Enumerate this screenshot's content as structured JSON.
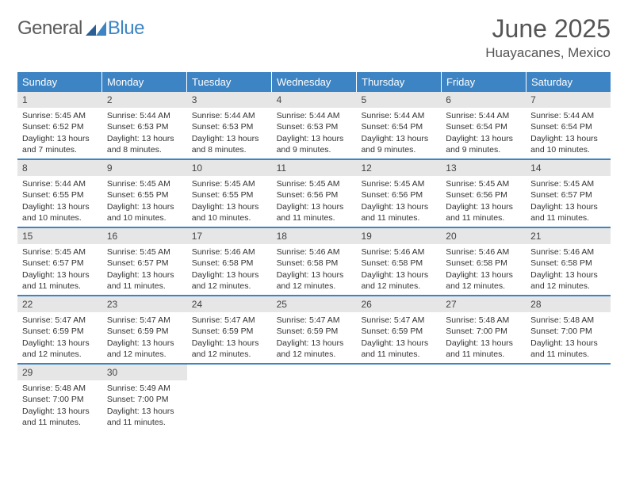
{
  "logo": {
    "general": "General",
    "blue": "Blue"
  },
  "title": "June 2025",
  "location": "Huayacanes, Mexico",
  "colors": {
    "header_bg": "#3d84c4",
    "header_fg": "#ffffff",
    "daynum_bg": "#e6e6e6",
    "week_border": "#3d84c4",
    "text": "#333333"
  },
  "weekdays": [
    "Sunday",
    "Monday",
    "Tuesday",
    "Wednesday",
    "Thursday",
    "Friday",
    "Saturday"
  ],
  "weeks": [
    [
      {
        "n": "1",
        "sr": "Sunrise: 5:45 AM",
        "ss": "Sunset: 6:52 PM",
        "d1": "Daylight: 13 hours",
        "d2": "and 7 minutes."
      },
      {
        "n": "2",
        "sr": "Sunrise: 5:44 AM",
        "ss": "Sunset: 6:53 PM",
        "d1": "Daylight: 13 hours",
        "d2": "and 8 minutes."
      },
      {
        "n": "3",
        "sr": "Sunrise: 5:44 AM",
        "ss": "Sunset: 6:53 PM",
        "d1": "Daylight: 13 hours",
        "d2": "and 8 minutes."
      },
      {
        "n": "4",
        "sr": "Sunrise: 5:44 AM",
        "ss": "Sunset: 6:53 PM",
        "d1": "Daylight: 13 hours",
        "d2": "and 9 minutes."
      },
      {
        "n": "5",
        "sr": "Sunrise: 5:44 AM",
        "ss": "Sunset: 6:54 PM",
        "d1": "Daylight: 13 hours",
        "d2": "and 9 minutes."
      },
      {
        "n": "6",
        "sr": "Sunrise: 5:44 AM",
        "ss": "Sunset: 6:54 PM",
        "d1": "Daylight: 13 hours",
        "d2": "and 9 minutes."
      },
      {
        "n": "7",
        "sr": "Sunrise: 5:44 AM",
        "ss": "Sunset: 6:54 PM",
        "d1": "Daylight: 13 hours",
        "d2": "and 10 minutes."
      }
    ],
    [
      {
        "n": "8",
        "sr": "Sunrise: 5:44 AM",
        "ss": "Sunset: 6:55 PM",
        "d1": "Daylight: 13 hours",
        "d2": "and 10 minutes."
      },
      {
        "n": "9",
        "sr": "Sunrise: 5:45 AM",
        "ss": "Sunset: 6:55 PM",
        "d1": "Daylight: 13 hours",
        "d2": "and 10 minutes."
      },
      {
        "n": "10",
        "sr": "Sunrise: 5:45 AM",
        "ss": "Sunset: 6:55 PM",
        "d1": "Daylight: 13 hours",
        "d2": "and 10 minutes."
      },
      {
        "n": "11",
        "sr": "Sunrise: 5:45 AM",
        "ss": "Sunset: 6:56 PM",
        "d1": "Daylight: 13 hours",
        "d2": "and 11 minutes."
      },
      {
        "n": "12",
        "sr": "Sunrise: 5:45 AM",
        "ss": "Sunset: 6:56 PM",
        "d1": "Daylight: 13 hours",
        "d2": "and 11 minutes."
      },
      {
        "n": "13",
        "sr": "Sunrise: 5:45 AM",
        "ss": "Sunset: 6:56 PM",
        "d1": "Daylight: 13 hours",
        "d2": "and 11 minutes."
      },
      {
        "n": "14",
        "sr": "Sunrise: 5:45 AM",
        "ss": "Sunset: 6:57 PM",
        "d1": "Daylight: 13 hours",
        "d2": "and 11 minutes."
      }
    ],
    [
      {
        "n": "15",
        "sr": "Sunrise: 5:45 AM",
        "ss": "Sunset: 6:57 PM",
        "d1": "Daylight: 13 hours",
        "d2": "and 11 minutes."
      },
      {
        "n": "16",
        "sr": "Sunrise: 5:45 AM",
        "ss": "Sunset: 6:57 PM",
        "d1": "Daylight: 13 hours",
        "d2": "and 11 minutes."
      },
      {
        "n": "17",
        "sr": "Sunrise: 5:46 AM",
        "ss": "Sunset: 6:58 PM",
        "d1": "Daylight: 13 hours",
        "d2": "and 12 minutes."
      },
      {
        "n": "18",
        "sr": "Sunrise: 5:46 AM",
        "ss": "Sunset: 6:58 PM",
        "d1": "Daylight: 13 hours",
        "d2": "and 12 minutes."
      },
      {
        "n": "19",
        "sr": "Sunrise: 5:46 AM",
        "ss": "Sunset: 6:58 PM",
        "d1": "Daylight: 13 hours",
        "d2": "and 12 minutes."
      },
      {
        "n": "20",
        "sr": "Sunrise: 5:46 AM",
        "ss": "Sunset: 6:58 PM",
        "d1": "Daylight: 13 hours",
        "d2": "and 12 minutes."
      },
      {
        "n": "21",
        "sr": "Sunrise: 5:46 AM",
        "ss": "Sunset: 6:58 PM",
        "d1": "Daylight: 13 hours",
        "d2": "and 12 minutes."
      }
    ],
    [
      {
        "n": "22",
        "sr": "Sunrise: 5:47 AM",
        "ss": "Sunset: 6:59 PM",
        "d1": "Daylight: 13 hours",
        "d2": "and 12 minutes."
      },
      {
        "n": "23",
        "sr": "Sunrise: 5:47 AM",
        "ss": "Sunset: 6:59 PM",
        "d1": "Daylight: 13 hours",
        "d2": "and 12 minutes."
      },
      {
        "n": "24",
        "sr": "Sunrise: 5:47 AM",
        "ss": "Sunset: 6:59 PM",
        "d1": "Daylight: 13 hours",
        "d2": "and 12 minutes."
      },
      {
        "n": "25",
        "sr": "Sunrise: 5:47 AM",
        "ss": "Sunset: 6:59 PM",
        "d1": "Daylight: 13 hours",
        "d2": "and 12 minutes."
      },
      {
        "n": "26",
        "sr": "Sunrise: 5:47 AM",
        "ss": "Sunset: 6:59 PM",
        "d1": "Daylight: 13 hours",
        "d2": "and 11 minutes."
      },
      {
        "n": "27",
        "sr": "Sunrise: 5:48 AM",
        "ss": "Sunset: 7:00 PM",
        "d1": "Daylight: 13 hours",
        "d2": "and 11 minutes."
      },
      {
        "n": "28",
        "sr": "Sunrise: 5:48 AM",
        "ss": "Sunset: 7:00 PM",
        "d1": "Daylight: 13 hours",
        "d2": "and 11 minutes."
      }
    ],
    [
      {
        "n": "29",
        "sr": "Sunrise: 5:48 AM",
        "ss": "Sunset: 7:00 PM",
        "d1": "Daylight: 13 hours",
        "d2": "and 11 minutes."
      },
      {
        "n": "30",
        "sr": "Sunrise: 5:49 AM",
        "ss": "Sunset: 7:00 PM",
        "d1": "Daylight: 13 hours",
        "d2": "and 11 minutes."
      },
      null,
      null,
      null,
      null,
      null
    ]
  ]
}
